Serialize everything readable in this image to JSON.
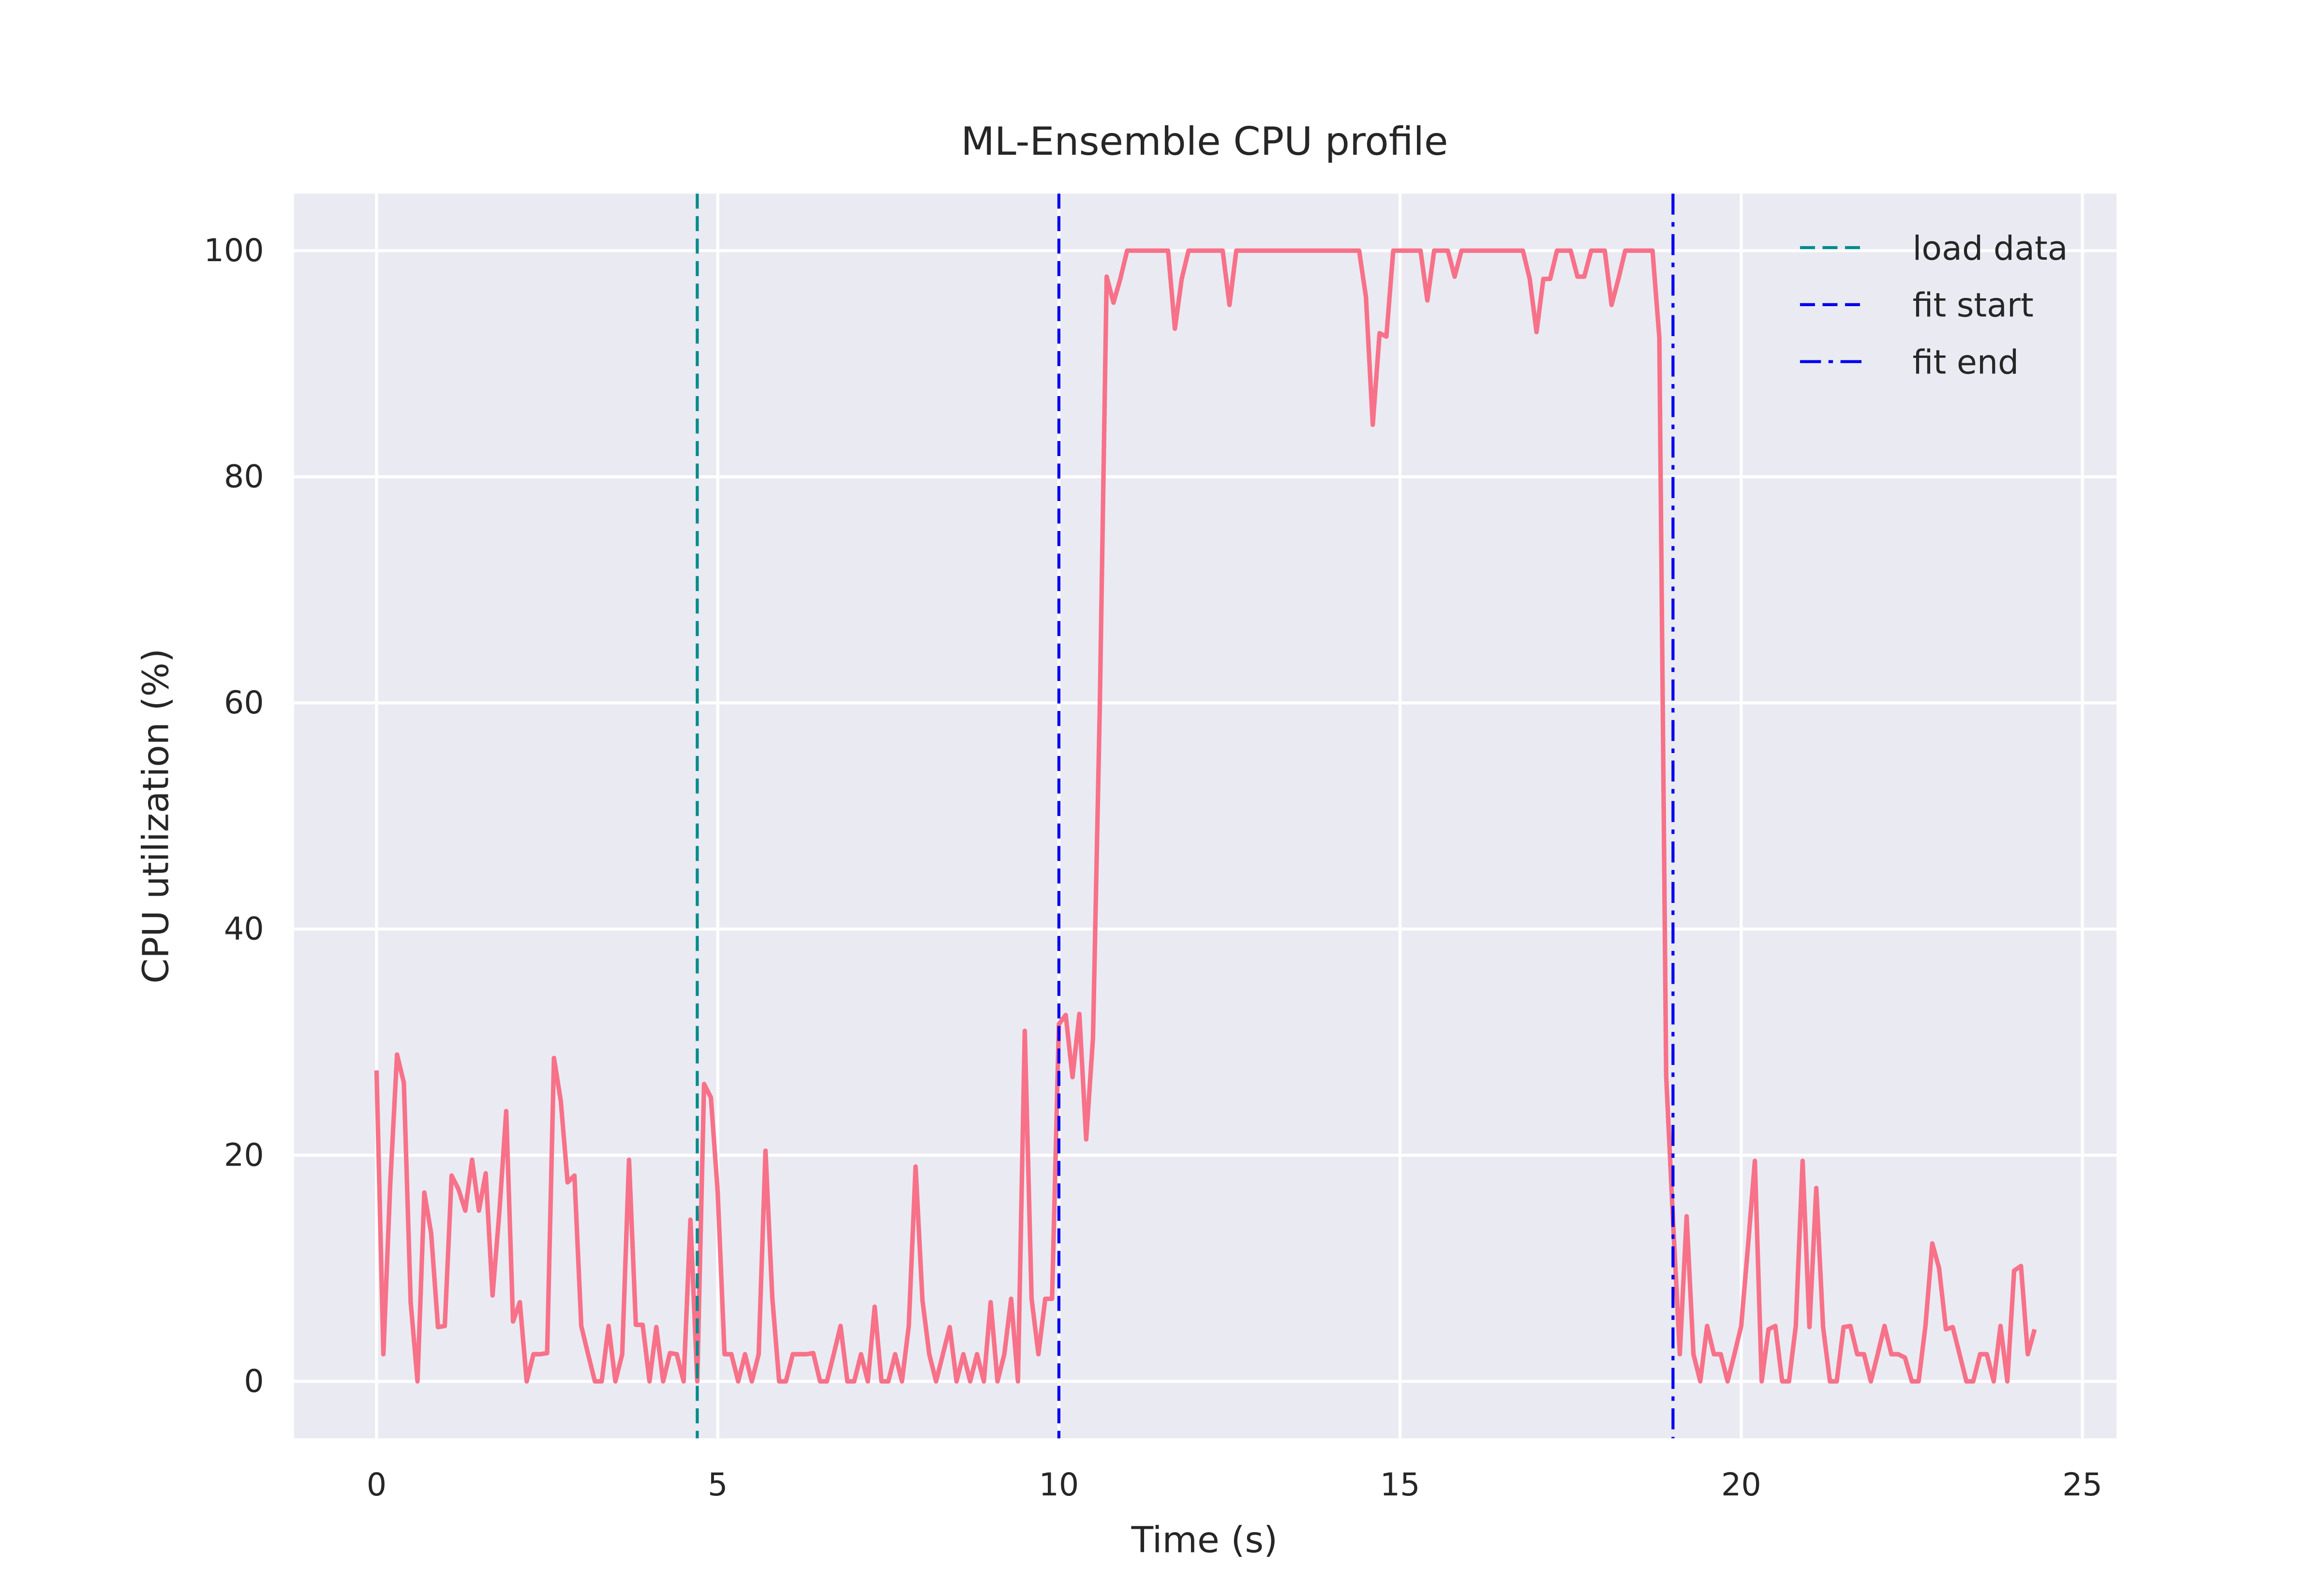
{
  "chart_data": {
    "type": "line",
    "title": "ML-Ensemble CPU profile",
    "xlabel": "Time (s)",
    "ylabel": "CPU utilization (%)",
    "xlim": [
      -1.21,
      25.5
    ],
    "ylim": [
      -5.04,
      105.04
    ],
    "xticks": [
      0,
      5,
      10,
      15,
      20,
      25
    ],
    "yticks": [
      0,
      20,
      40,
      60,
      80,
      100
    ],
    "grid": true,
    "legend": "upper right",
    "x": [
      0,
      0.1,
      0.2,
      0.3,
      0.4,
      0.5,
      0.6,
      0.7,
      0.8,
      0.9,
      1,
      1.1,
      1.2,
      1.3,
      1.4,
      1.5,
      1.6,
      1.7,
      1.8,
      1.9,
      2,
      2.1,
      2.2,
      2.3,
      2.4,
      2.5,
      2.6,
      2.7,
      2.8,
      2.9,
      3,
      3.1,
      3.2,
      3.3,
      3.4,
      3.5,
      3.6,
      3.7,
      3.8,
      3.9,
      4,
      4.1,
      4.2,
      4.3,
      4.4,
      4.5,
      4.6,
      4.7,
      4.8,
      4.9,
      5,
      5.1,
      5.2,
      5.3,
      5.4,
      5.5,
      5.6,
      5.7,
      5.8,
      5.9,
      6,
      6.1,
      6.2,
      6.3,
      6.4,
      6.5,
      6.6,
      6.7,
      6.8,
      6.9,
      7,
      7.1,
      7.2,
      7.3,
      7.4,
      7.5,
      7.6,
      7.7,
      7.8,
      7.9,
      8,
      8.1,
      8.2,
      8.3,
      8.4,
      8.5,
      8.6,
      8.7,
      8.8,
      8.9,
      9,
      9.1,
      9.2,
      9.3,
      9.4,
      9.5,
      9.6,
      9.7,
      9.8,
      9.9,
      10,
      10.1,
      10.2,
      10.3,
      10.4,
      10.5,
      10.6,
      10.7,
      10.8,
      10.9,
      11,
      11.1,
      11.2,
      11.3,
      11.4,
      11.5,
      11.6,
      11.7,
      11.8,
      11.9,
      12,
      12.1,
      12.2,
      12.3,
      12.4,
      12.5,
      12.6,
      12.7,
      12.8,
      12.9,
      13,
      13.1,
      13.2,
      13.3,
      13.4,
      13.5,
      13.6,
      13.7,
      13.8,
      13.9,
      14,
      14.1,
      14.2,
      14.3,
      14.4,
      14.5,
      14.6,
      14.7,
      14.8,
      14.9,
      15,
      15.1,
      15.2,
      15.3,
      15.4,
      15.5,
      15.6,
      15.7,
      15.8,
      15.9,
      16,
      16.1,
      16.2,
      16.3,
      16.4,
      16.5,
      16.6,
      16.7,
      16.8,
      16.9,
      17,
      17.1,
      17.2,
      17.3,
      17.4,
      17.5,
      17.6,
      17.7,
      17.8,
      17.9,
      18,
      18.1,
      18.2,
      18.3,
      18.4,
      18.5,
      18.6,
      18.7,
      18.8,
      18.9,
      19,
      19.1,
      19.2,
      19.3,
      19.4,
      19.5,
      19.6,
      19.7,
      19.8,
      19.9,
      20,
      20.1,
      20.2,
      20.3,
      20.4,
      20.5,
      20.6,
      20.7,
      20.8,
      20.9,
      21,
      21.1,
      21.2,
      21.3,
      21.4,
      21.5,
      21.6,
      21.7,
      21.8,
      21.9,
      22,
      22.1,
      22.2,
      22.3,
      22.4,
      22.5,
      22.6,
      22.7,
      22.8,
      22.9,
      23,
      23.1,
      23.2,
      23.3,
      23.4,
      23.5,
      23.6,
      23.7,
      23.8,
      23.9,
      24,
      24.1,
      24.2,
      24.3
    ],
    "series": [
      {
        "color": "#f77189",
        "values": [
          27.5,
          2.4,
          17.4,
          28.9,
          26.4,
          7,
          0,
          16.7,
          13.1,
          4.8,
          4.9,
          18.2,
          17,
          15.1,
          19.6,
          15.1,
          18.4,
          7.6,
          15,
          23.9,
          5.3,
          7,
          0,
          2.4,
          2.4,
          2.5,
          28.6,
          24.8,
          17.6,
          18.2,
          4.9,
          2.4,
          0,
          0,
          4.9,
          0,
          2.4,
          19.6,
          5,
          5,
          0,
          4.8,
          0,
          2.5,
          2.4,
          0,
          14.3,
          0,
          26.3,
          25.1,
          16.7,
          2.4,
          2.4,
          0,
          2.4,
          0,
          2.4,
          20.4,
          7.4,
          0,
          0,
          2.4,
          2.4,
          2.4,
          2.5,
          0,
          0,
          2.4,
          4.9,
          0,
          0,
          2.4,
          0,
          6.6,
          0,
          0,
          2.4,
          0,
          4.9,
          19,
          7.2,
          2.4,
          0,
          2.4,
          4.8,
          0,
          2.4,
          0,
          2.4,
          0,
          7,
          0,
          2.4,
          7.3,
          0,
          31,
          7.3,
          2.4,
          7.3,
          7.3,
          31.6,
          32.4,
          26.9,
          32.5,
          21.4,
          30.4,
          59.8,
          97.7,
          95.4,
          97.5,
          100,
          100,
          100,
          100,
          100,
          100,
          100,
          93.1,
          97.5,
          100,
          100,
          100,
          100,
          100,
          100,
          95.2,
          100,
          100,
          100,
          100,
          100,
          100,
          100,
          100,
          100,
          100,
          100,
          100,
          100,
          100,
          100,
          100,
          100,
          100,
          100,
          95.9,
          84.6,
          92.7,
          92.4,
          100,
          100,
          100,
          100,
          100,
          95.6,
          100,
          100,
          100,
          97.7,
          100,
          100,
          100,
          100,
          100,
          100,
          100,
          100,
          100,
          100,
          97.5,
          92.8,
          97.5,
          97.5,
          100,
          100,
          100,
          97.7,
          97.7,
          100,
          100,
          100,
          95.2,
          97.5,
          100,
          100,
          100,
          100,
          100,
          92.3,
          27,
          14.3,
          2.4,
          14.6,
          2.4,
          0,
          4.9,
          2.4,
          2.4,
          0,
          2.4,
          4.9,
          12,
          19.5,
          0,
          4.6,
          4.9,
          0,
          0,
          4.9,
          19.5,
          4.8,
          17.1,
          4.8,
          0,
          0,
          4.8,
          4.9,
          2.4,
          2.4,
          0,
          2.4,
          4.9,
          2.4,
          2.4,
          2.1,
          0,
          0,
          4.9,
          12.2,
          10,
          4.6,
          4.8,
          2.4,
          0,
          0,
          2.4,
          2.4,
          0,
          4.9,
          0,
          9.8,
          10.2,
          2.4,
          4.6
        ]
      }
    ],
    "vlines": [
      {
        "name": "load data",
        "x": 4.7,
        "color": "#008b8b",
        "style": "dashed"
      },
      {
        "name": "fit start",
        "x": 10.0,
        "color": "#0000ee",
        "style": "dashed"
      },
      {
        "name": "fit end",
        "x": 19.0,
        "color": "#0000ee",
        "style": "dashdot"
      }
    ]
  }
}
